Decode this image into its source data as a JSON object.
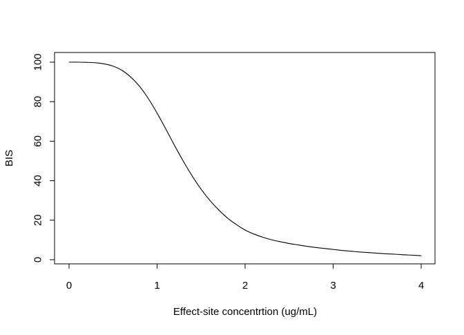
{
  "chart_data": {
    "type": "line",
    "title": "",
    "xlabel": "Effect-site concentrtion (ug/mL)",
    "ylabel": "BIS",
    "xlim": [
      0,
      4
    ],
    "ylim": [
      0,
      100
    ],
    "x_ticks": [
      0,
      1,
      2,
      3,
      4
    ],
    "x_tick_labels": [
      "0",
      "1",
      "2",
      "3",
      "4"
    ],
    "y_ticks": [
      0,
      20,
      40,
      60,
      80,
      100
    ],
    "y_tick_labels": [
      "0",
      "20",
      "40",
      "60",
      "80",
      "100"
    ],
    "grid": false,
    "legend": "none",
    "colors": {
      "line": "#000000",
      "axes": "#000000",
      "background": "#ffffff"
    },
    "series": [
      {
        "x": [
          0,
          0.1,
          0.2,
          0.3,
          0.4,
          0.5,
          0.6,
          0.7,
          0.8,
          0.9,
          1.0,
          1.1,
          1.2,
          1.3,
          1.4,
          1.5,
          1.6,
          1.7,
          1.8,
          1.9,
          2.0,
          2.1,
          2.2,
          2.3,
          2.4,
          2.5,
          2.6,
          2.7,
          2.8,
          2.9,
          3.0,
          3.1,
          3.2,
          3.3,
          3.4,
          3.5,
          3.6,
          3.7,
          3.8,
          3.9,
          4.0
        ],
        "y": [
          100,
          100,
          99.9,
          99.7,
          99.1,
          98.0,
          95.9,
          92.5,
          87.8,
          81.6,
          74.2,
          66.1,
          57.7,
          49.7,
          42.3,
          35.7,
          30.0,
          25.2,
          21.1,
          17.8,
          15.0,
          13.0,
          11.4,
          10.1,
          9.1,
          8.2,
          7.5,
          6.8,
          6.2,
          5.7,
          5.2,
          4.7,
          4.3,
          3.9,
          3.6,
          3.3,
          3.0,
          2.8,
          2.5,
          2.3,
          2.0
        ]
      }
    ]
  }
}
